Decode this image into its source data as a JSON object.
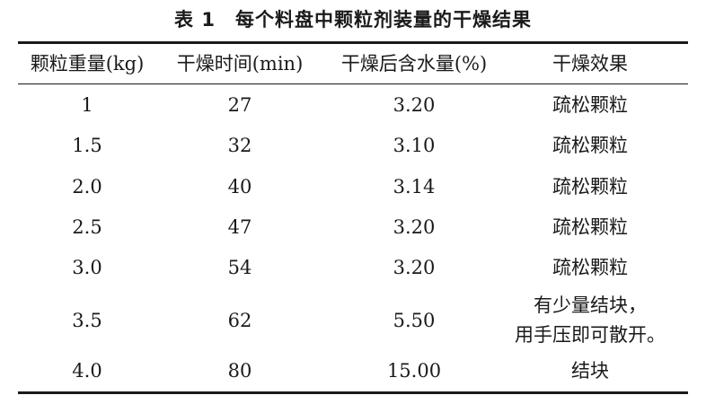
{
  "table": {
    "title": "表 1　每个料盘中颗粒剂装量的干燥结果",
    "headers": [
      "颗粒重量(kg)",
      "干燥时间(min)",
      "干燥后含水量(%)",
      "干燥效果"
    ],
    "rows": [
      [
        "1",
        "27",
        "3.20",
        "疏松颗粒"
      ],
      [
        "1.5",
        "32",
        "3.10",
        "疏松颗粒"
      ],
      [
        "2.0",
        "40",
        "3.14",
        "疏松颗粒"
      ],
      [
        "2.5",
        "47",
        "3.20",
        "疏松颗粒"
      ],
      [
        "3.0",
        "54",
        "3.20",
        "疏松颗粒"
      ],
      [
        "3.5",
        "62",
        "5.50",
        "有少量结块，\n用手压即可散开。"
      ],
      [
        "4.0",
        "80",
        "15.00",
        "结块"
      ]
    ]
  }
}
